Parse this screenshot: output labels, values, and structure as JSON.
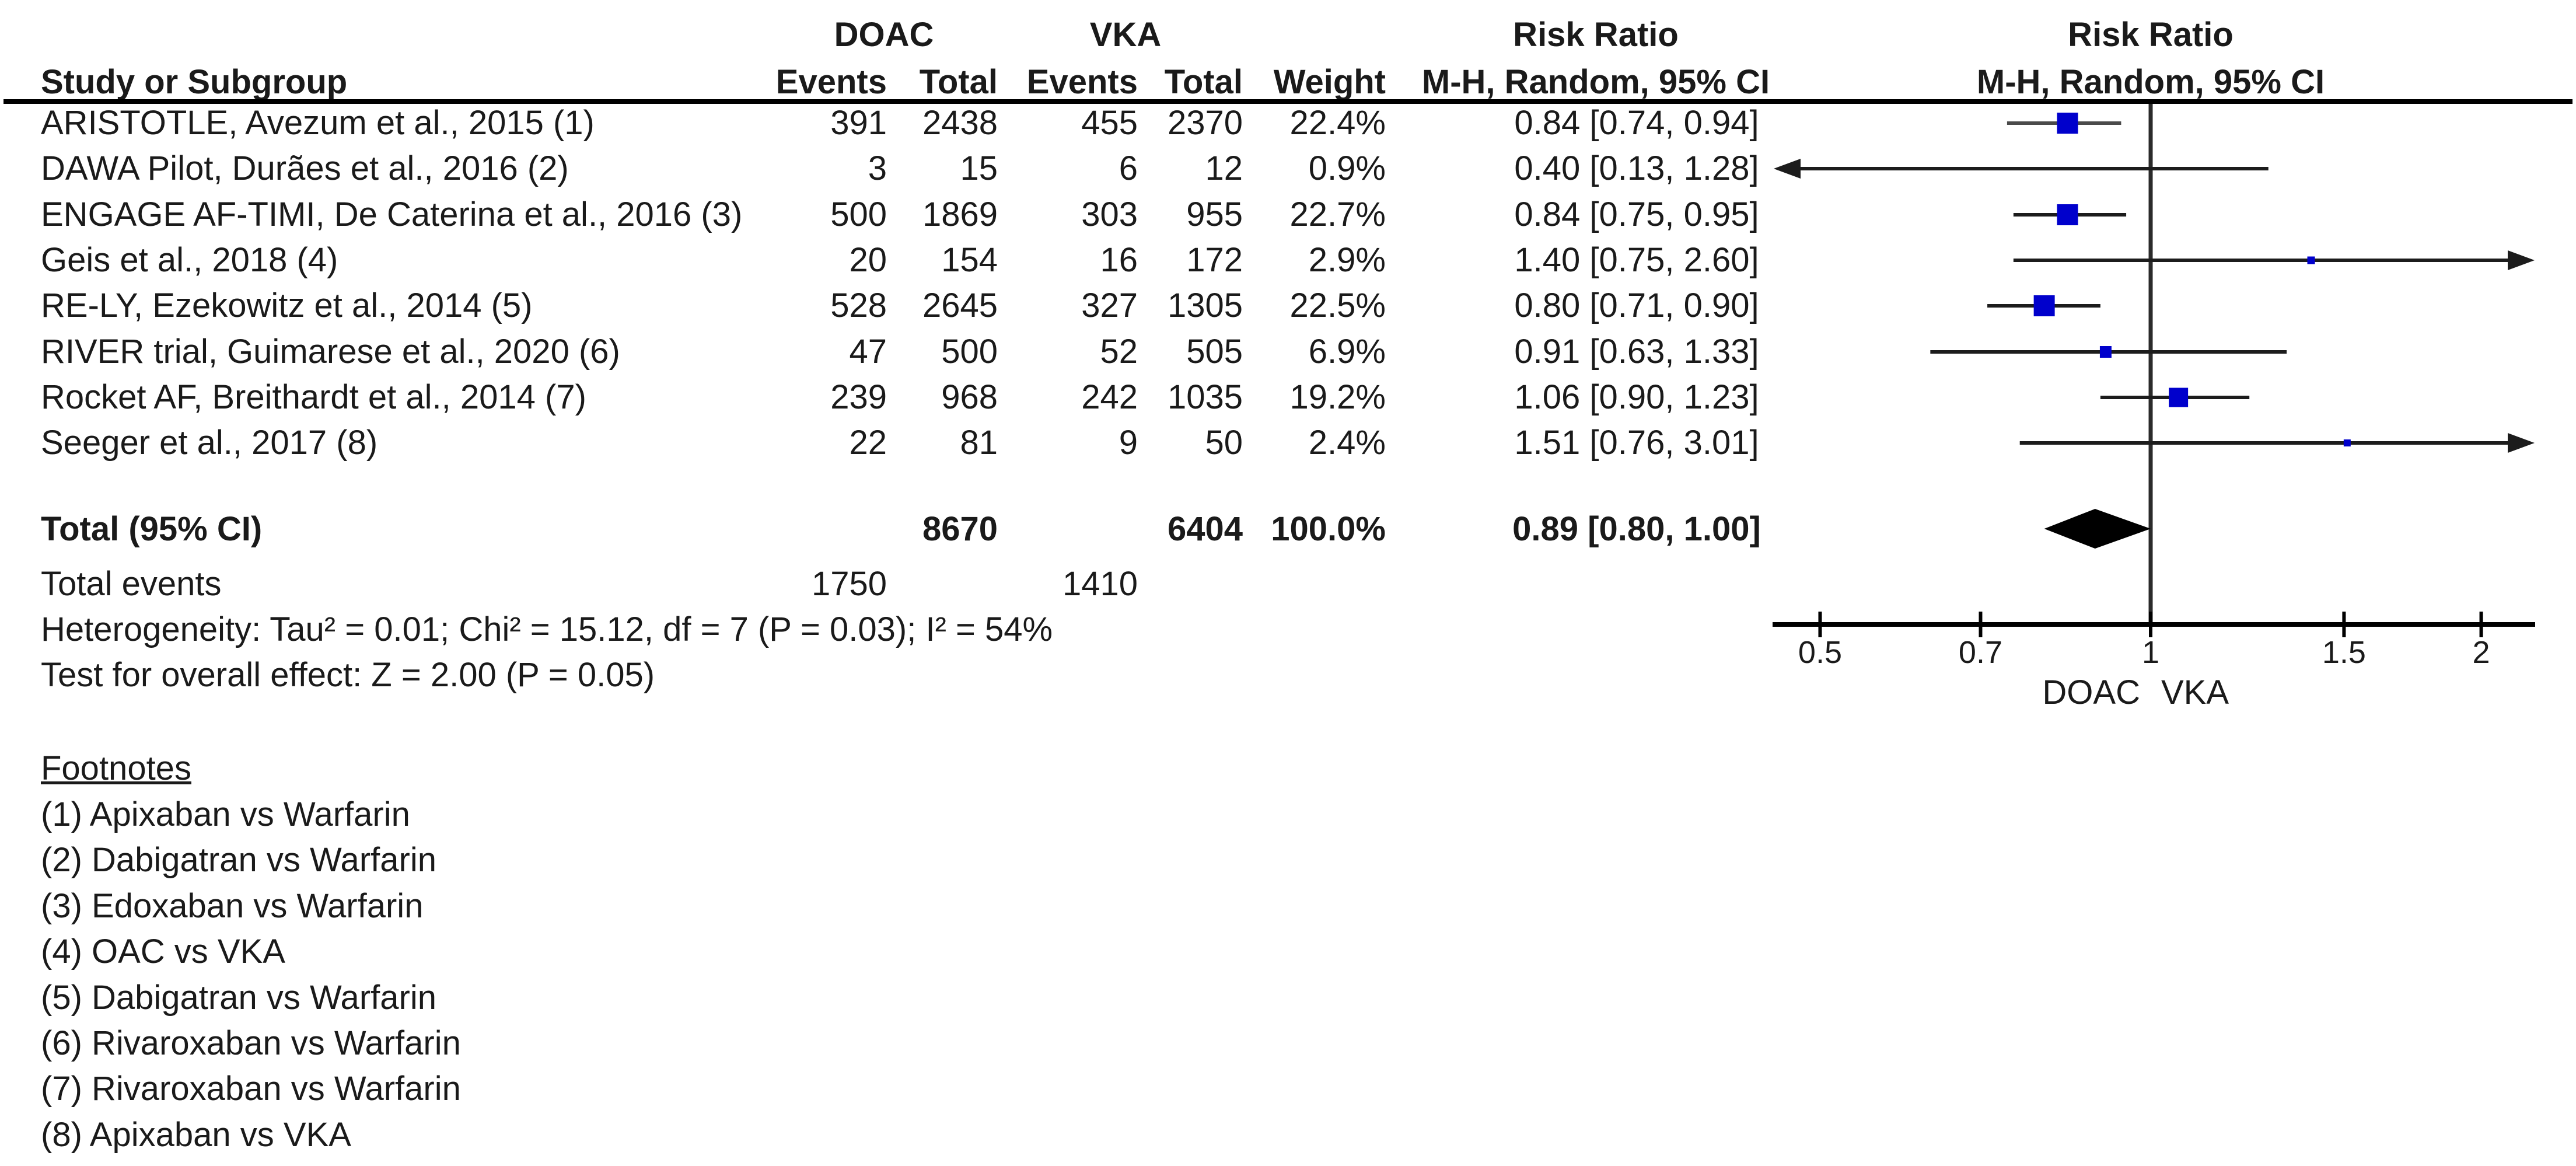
{
  "header": {
    "group_doac": "DOAC",
    "group_vka": "VKA",
    "risk_ratio": "Risk Ratio",
    "study_or_subgroup": "Study or Subgroup",
    "events": "Events",
    "total": "Total",
    "weight": "Weight",
    "method_ci": "M-H, Random, 95% CI"
  },
  "chart_data": {
    "type": "forest",
    "effect_measure": "Risk Ratio",
    "model": "M-H, Random, 95% CI",
    "x_axis": {
      "scale": "log",
      "ticks": [
        "0.5",
        "0.7",
        "1",
        "1.5",
        "2"
      ],
      "range_low": 0.45,
      "range_high": 2.2,
      "favors_left": "DOAC",
      "favors_right": "VKA"
    },
    "studies": [
      {
        "name": "ARISTOTLE, Avezum et al., 2015 (1)",
        "doac_events": "391",
        "doac_total": "2438",
        "vka_events": "455",
        "vka_total": "2370",
        "weight": "22.4%",
        "rr": 0.84,
        "ci_low": 0.74,
        "ci_high": 0.94,
        "ci_text": "0.84 [0.74, 0.94]",
        "line_color": "#4a4a4a"
      },
      {
        "name": "DAWA Pilot, Durães et al., 2016 (2)",
        "doac_events": "3",
        "doac_total": "15",
        "vka_events": "6",
        "vka_total": "12",
        "weight": "0.9%",
        "rr": 0.4,
        "ci_low": 0.13,
        "ci_high": 1.28,
        "ci_text": "0.40 [0.13, 1.28]"
      },
      {
        "name": "ENGAGE AF-TIMI, De Caterina et al., 2016 (3)",
        "doac_events": "500",
        "doac_total": "1869",
        "vka_events": "303",
        "vka_total": "955",
        "weight": "22.7%",
        "rr": 0.84,
        "ci_low": 0.75,
        "ci_high": 0.95,
        "ci_text": "0.84 [0.75, 0.95]"
      },
      {
        "name": "Geis et al., 2018 (4)",
        "doac_events": "20",
        "doac_total": "154",
        "vka_events": "16",
        "vka_total": "172",
        "weight": "2.9%",
        "rr": 1.4,
        "ci_low": 0.75,
        "ci_high": 2.6,
        "ci_text": "1.40 [0.75, 2.60]"
      },
      {
        "name": "RE-LY, Ezekowitz et al., 2014 (5)",
        "doac_events": "528",
        "doac_total": "2645",
        "vka_events": "327",
        "vka_total": "1305",
        "weight": "22.5%",
        "rr": 0.8,
        "ci_low": 0.71,
        "ci_high": 0.9,
        "ci_text": "0.80 [0.71, 0.90]"
      },
      {
        "name": "RIVER trial, Guimarese et al., 2020 (6)",
        "doac_events": "47",
        "doac_total": "500",
        "vka_events": "52",
        "vka_total": "505",
        "weight": "6.9%",
        "rr": 0.91,
        "ci_low": 0.63,
        "ci_high": 1.33,
        "ci_text": "0.91 [0.63, 1.33]"
      },
      {
        "name": "Rocket AF, Breithardt et al., 2014 (7)",
        "doac_events": "239",
        "doac_total": "968",
        "vka_events": "242",
        "vka_total": "1035",
        "weight": "19.2%",
        "rr": 1.06,
        "ci_low": 0.9,
        "ci_high": 1.23,
        "ci_text": "1.06 [0.90, 1.23]"
      },
      {
        "name": "Seeger et al., 2017 (8)",
        "doac_events": "22",
        "doac_total": "81",
        "vka_events": "9",
        "vka_total": "50",
        "weight": "2.4%",
        "rr": 1.51,
        "ci_low": 0.76,
        "ci_high": 3.01,
        "ci_text": "1.51 [0.76, 3.01]"
      }
    ],
    "total": {
      "label": "Total (95% CI)",
      "doac_total": "8670",
      "vka_total": "6404",
      "weight": "100.0%",
      "rr": 0.89,
      "ci_low": 0.8,
      "ci_high": 1.0,
      "ci_text": "0.89 [0.80, 1.00]"
    },
    "total_events": {
      "label": "Total events",
      "doac": "1750",
      "vka": "1410"
    },
    "heterogeneity": "Heterogeneity: Tau² = 0.01; Chi² = 15.12, df = 7 (P = 0.03); I² = 54%",
    "overall_effect": "Test for overall effect: Z = 2.00 (P = 0.05)",
    "marker_color": "#0000CC",
    "diamond_color": "#000000",
    "axis_color": "#000000",
    "ci_line_color": "#1c1c1c"
  },
  "footnotes": {
    "title": "Footnotes",
    "items": [
      "(1) Apixaban vs Warfarin",
      "(2) Dabigatran vs Warfarin",
      "(3) Edoxaban vs Warfarin",
      "(4) OAC vs VKA",
      "(5) Dabigatran vs Warfarin",
      "(6) Rivaroxaban vs Warfarin",
      "(7) Rivaroxaban vs Warfarin",
      "(8) Apixaban vs VKA"
    ]
  }
}
